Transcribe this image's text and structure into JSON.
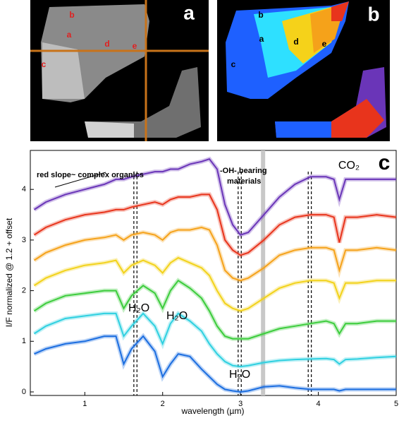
{
  "image_panels": [
    {
      "label": "a",
      "markers": [
        "b",
        "a",
        "d",
        "e",
        "c"
      ]
    },
    {
      "label": "b",
      "markers": [
        "b",
        "a",
        "d",
        "e",
        "c"
      ]
    }
  ],
  "chart_data": {
    "type": "line",
    "panel_label": "c",
    "x_label": "wavelength (µm)",
    "y_label": "I/F normalized @ 1.2 + offset",
    "xlim": [
      0.3,
      5
    ],
    "ylim": [
      -0.07,
      4.77
    ],
    "xticks": [
      1,
      2,
      3,
      4,
      5
    ],
    "yticks": [
      0,
      1,
      2,
      3,
      4
    ],
    "vlines": [
      1.63,
      1.67,
      2.97,
      3.01,
      3.87,
      3.91
    ],
    "band": 3.29,
    "annotations": [
      "red slope~ complex organics",
      "-OH- bearing",
      "materials",
      "CO₂",
      "H₂O",
      "H₂O",
      "H₂O"
    ],
    "x": [
      0.35,
      0.5,
      0.75,
      1.0,
      1.25,
      1.4,
      1.5,
      1.6,
      1.75,
      1.9,
      2.0,
      2.1,
      2.2,
      2.35,
      2.5,
      2.6,
      2.7,
      2.8,
      2.9,
      3.0,
      3.1,
      3.3,
      3.5,
      3.7,
      3.9,
      4.1,
      4.2,
      4.27,
      4.35,
      4.5,
      4.75,
      5.0
    ],
    "series": [
      {
        "color": "#6a35b8",
        "values": [
          3.6,
          3.75,
          3.9,
          4.0,
          4.1,
          4.2,
          4.2,
          4.25,
          4.3,
          4.35,
          4.35,
          4.4,
          4.4,
          4.5,
          4.55,
          4.6,
          4.4,
          3.7,
          3.3,
          3.1,
          3.15,
          3.5,
          3.85,
          4.1,
          4.25,
          4.25,
          4.2,
          3.8,
          4.2,
          4.2,
          4.2,
          4.2
        ]
      },
      {
        "color": "#e8341c",
        "values": [
          3.1,
          3.25,
          3.4,
          3.5,
          3.55,
          3.6,
          3.6,
          3.65,
          3.7,
          3.75,
          3.7,
          3.8,
          3.85,
          3.85,
          3.9,
          3.9,
          3.6,
          3.0,
          2.8,
          2.7,
          2.75,
          3.0,
          3.3,
          3.45,
          3.5,
          3.5,
          3.45,
          2.95,
          3.45,
          3.45,
          3.5,
          3.45
        ]
      },
      {
        "color": "#f5a21a",
        "values": [
          2.6,
          2.75,
          2.9,
          3.0,
          3.05,
          3.1,
          3.0,
          3.1,
          3.15,
          3.1,
          3.0,
          3.15,
          3.2,
          3.2,
          3.25,
          3.2,
          2.9,
          2.4,
          2.25,
          2.2,
          2.25,
          2.45,
          2.7,
          2.8,
          2.85,
          2.85,
          2.8,
          2.4,
          2.8,
          2.8,
          2.85,
          2.8
        ]
      },
      {
        "color": "#f2d21a",
        "values": [
          2.1,
          2.25,
          2.4,
          2.5,
          2.55,
          2.6,
          2.35,
          2.5,
          2.6,
          2.5,
          2.35,
          2.55,
          2.65,
          2.55,
          2.45,
          2.3,
          2.0,
          1.75,
          1.65,
          1.6,
          1.65,
          1.85,
          2.05,
          2.15,
          2.2,
          2.2,
          2.15,
          1.85,
          2.15,
          2.15,
          2.2,
          2.2
        ]
      },
      {
        "color": "#3ccc3c",
        "values": [
          1.6,
          1.75,
          1.9,
          1.95,
          2.0,
          2.0,
          1.65,
          1.9,
          2.1,
          1.95,
          1.65,
          2.0,
          2.2,
          2.05,
          1.85,
          1.6,
          1.3,
          1.1,
          1.05,
          1.05,
          1.05,
          1.15,
          1.25,
          1.3,
          1.35,
          1.4,
          1.35,
          1.15,
          1.35,
          1.35,
          1.4,
          1.4
        ]
      },
      {
        "color": "#2fd0e0",
        "values": [
          1.15,
          1.3,
          1.45,
          1.5,
          1.55,
          1.55,
          1.1,
          1.3,
          1.55,
          1.3,
          0.95,
          1.35,
          1.55,
          1.4,
          1.2,
          0.95,
          0.75,
          0.6,
          0.52,
          0.5,
          0.52,
          0.58,
          0.62,
          0.64,
          0.65,
          0.66,
          0.64,
          0.55,
          0.64,
          0.65,
          0.68,
          0.7
        ]
      },
      {
        "color": "#1c6ee0",
        "values": [
          0.75,
          0.85,
          0.95,
          1.0,
          1.1,
          1.1,
          0.55,
          0.85,
          1.1,
          0.8,
          0.3,
          0.55,
          0.75,
          0.7,
          0.45,
          0.3,
          0.15,
          0.05,
          0.02,
          0.0,
          0.02,
          0.1,
          0.12,
          0.08,
          0.05,
          0.05,
          0.05,
          0.02,
          0.05,
          0.05,
          0.05,
          0.05
        ]
      }
    ]
  }
}
